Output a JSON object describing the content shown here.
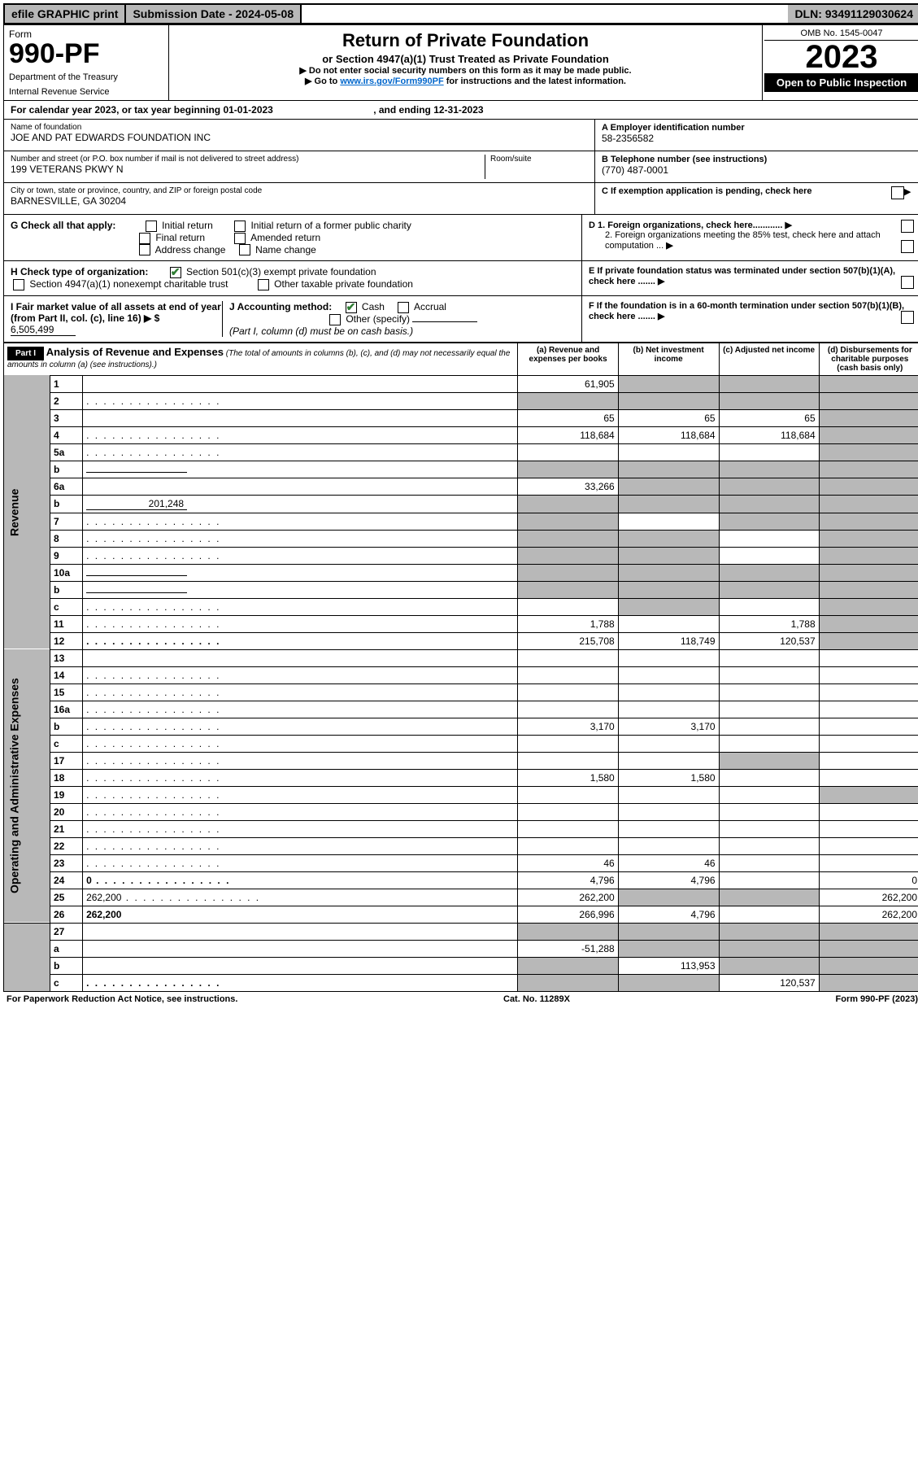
{
  "top": {
    "efile": "efile GRAPHIC print",
    "subdate_label": "Submission Date - ",
    "subdate": "2024-05-08",
    "dln_label": "DLN: ",
    "dln": "93491129030624"
  },
  "header": {
    "form_label": "Form",
    "form_num": "990-PF",
    "dept1": "Department of the Treasury",
    "dept2": "Internal Revenue Service",
    "title": "Return of Private Foundation",
    "subtitle": "or Section 4947(a)(1) Trust Treated as Private Foundation",
    "instr1": "▶ Do not enter social security numbers on this form as it may be made public.",
    "instr2_pre": "▶ Go to ",
    "instr2_link": "www.irs.gov/Form990PF",
    "instr2_post": " for instructions and the latest information.",
    "omb": "OMB No. 1545-0047",
    "year": "2023",
    "open": "Open to Public Inspection"
  },
  "calyear": {
    "text_pre": "For calendar year 2023, or tax year beginning ",
    "begin": "01-01-2023",
    "text_mid": " , and ending ",
    "end": "12-31-2023"
  },
  "info": {
    "name_label": "Name of foundation",
    "name": "JOE AND PAT EDWARDS FOUNDATION INC",
    "addr_label": "Number and street (or P.O. box number if mail is not delivered to street address)",
    "addr": "199 VETERANS PKWY N",
    "room_label": "Room/suite",
    "city_label": "City or town, state or province, country, and ZIP or foreign postal code",
    "city": "BARNESVILLE, GA  30204",
    "a_label": "A Employer identification number",
    "a_val": "58-2356582",
    "b_label": "B Telephone number (see instructions)",
    "b_val": "(770) 487-0001",
    "c_label": "C If exemption application is pending, check here"
  },
  "checks": {
    "g_label": "G Check all that apply:",
    "g_opts": [
      "Initial return",
      "Initial return of a former public charity",
      "Final return",
      "Amended return",
      "Address change",
      "Name change"
    ],
    "h_label": "H Check type of organization:",
    "h_501c3": "Section 501(c)(3) exempt private foundation",
    "h_4947": "Section 4947(a)(1) nonexempt charitable trust",
    "h_other": "Other taxable private foundation",
    "i_label": "I Fair market value of all assets at end of year (from Part II, col. (c), line 16) ▶ $",
    "i_val": "6,505,499",
    "j_label": "J Accounting method:",
    "j_cash": "Cash",
    "j_accrual": "Accrual",
    "j_other": "Other (specify)",
    "j_note": "(Part I, column (d) must be on cash basis.)",
    "d1": "D 1. Foreign organizations, check here............",
    "d2": "2. Foreign organizations meeting the 85% test, check here and attach computation ...",
    "e": "E   If private foundation status was terminated under section 507(b)(1)(A), check here .......",
    "f": "F   If the foundation is in a 60-month termination under section 507(b)(1)(B), check here .......",
    "arrow": "▶"
  },
  "part1": {
    "label": "Part I",
    "title": "Analysis of Revenue and Expenses",
    "title_note": " (The total of amounts in columns (b), (c), and (d) may not necessarily equal the amounts in column (a) (see instructions).)",
    "col_a": "(a)   Revenue and expenses per books",
    "col_b": "(b)   Net investment income",
    "col_c": "(c)   Adjusted net income",
    "col_d": "(d)   Disbursements for charitable purposes (cash basis only)"
  },
  "side": {
    "revenue": "Revenue",
    "expenses": "Operating and Administrative Expenses"
  },
  "rows": [
    {
      "n": "1",
      "d": "",
      "a": "61,905",
      "b": "",
      "c": "",
      "shade_b": true,
      "shade_c": true,
      "shade_d": true
    },
    {
      "n": "2",
      "d": "",
      "a": "",
      "b": "",
      "c": "",
      "shade_a": true,
      "shade_b": true,
      "shade_c": true,
      "shade_d": true,
      "dots": true
    },
    {
      "n": "3",
      "d": "",
      "a": "65",
      "b": "65",
      "c": "65",
      "shade_d": true
    },
    {
      "n": "4",
      "d": "",
      "a": "118,684",
      "b": "118,684",
      "c": "118,684",
      "shade_d": true,
      "dots": true
    },
    {
      "n": "5a",
      "d": "",
      "a": "",
      "b": "",
      "c": "",
      "shade_d": true,
      "dots": true
    },
    {
      "n": "b",
      "d": "",
      "a": "",
      "b": "",
      "c": "",
      "shade_a": true,
      "shade_b": true,
      "shade_c": true,
      "shade_d": true,
      "inline": true
    },
    {
      "n": "6a",
      "d": "",
      "a": "33,266",
      "b": "",
      "c": "",
      "shade_b": true,
      "shade_c": true,
      "shade_d": true
    },
    {
      "n": "b",
      "d": "",
      "a": "",
      "b": "",
      "c": "",
      "shade_a": true,
      "shade_b": true,
      "shade_c": true,
      "shade_d": true,
      "inline": true,
      "inline_val": "201,248"
    },
    {
      "n": "7",
      "d": "",
      "a": "",
      "b": "",
      "c": "",
      "shade_a": true,
      "shade_c": true,
      "shade_d": true,
      "dots": true
    },
    {
      "n": "8",
      "d": "",
      "a": "",
      "b": "",
      "c": "",
      "shade_a": true,
      "shade_b": true,
      "shade_d": true,
      "dots": true
    },
    {
      "n": "9",
      "d": "",
      "a": "",
      "b": "",
      "c": "",
      "shade_a": true,
      "shade_b": true,
      "shade_d": true,
      "dots": true
    },
    {
      "n": "10a",
      "d": "",
      "a": "",
      "b": "",
      "c": "",
      "shade_a": true,
      "shade_b": true,
      "shade_c": true,
      "shade_d": true,
      "inline": true
    },
    {
      "n": "b",
      "d": "",
      "a": "",
      "b": "",
      "c": "",
      "shade_a": true,
      "shade_b": true,
      "shade_c": true,
      "shade_d": true,
      "inline": true,
      "dots": true
    },
    {
      "n": "c",
      "d": "",
      "a": "",
      "b": "",
      "c": "",
      "shade_b": true,
      "shade_d": true,
      "dots": true
    },
    {
      "n": "11",
      "d": "",
      "a": "1,788",
      "b": "",
      "c": "1,788",
      "shade_d": true,
      "dots": true
    },
    {
      "n": "12",
      "d": "",
      "a": "215,708",
      "b": "118,749",
      "c": "120,537",
      "shade_d": true,
      "bold": true,
      "dots": true
    }
  ],
  "rows2": [
    {
      "n": "13",
      "d": "",
      "a": "",
      "b": "",
      "c": ""
    },
    {
      "n": "14",
      "d": "",
      "a": "",
      "b": "",
      "c": "",
      "dots": true
    },
    {
      "n": "15",
      "d": "",
      "a": "",
      "b": "",
      "c": "",
      "dots": true
    },
    {
      "n": "16a",
      "d": "",
      "a": "",
      "b": "",
      "c": "",
      "dots": true
    },
    {
      "n": "b",
      "d": "",
      "a": "3,170",
      "b": "3,170",
      "c": "",
      "dots": true
    },
    {
      "n": "c",
      "d": "",
      "a": "",
      "b": "",
      "c": "",
      "dots": true
    },
    {
      "n": "17",
      "d": "",
      "a": "",
      "b": "",
      "c": "",
      "shade_c": true,
      "dots": true
    },
    {
      "n": "18",
      "d": "",
      "a": "1,580",
      "b": "1,580",
      "c": "",
      "dots": true
    },
    {
      "n": "19",
      "d": "",
      "a": "",
      "b": "",
      "c": "",
      "shade_d": true,
      "dots": true
    },
    {
      "n": "20",
      "d": "",
      "a": "",
      "b": "",
      "c": "",
      "dots": true
    },
    {
      "n": "21",
      "d": "",
      "a": "",
      "b": "",
      "c": "",
      "dots": true
    },
    {
      "n": "22",
      "d": "",
      "a": "",
      "b": "",
      "c": "",
      "dots": true
    },
    {
      "n": "23",
      "d": "",
      "a": "46",
      "b": "46",
      "c": "",
      "dots": true
    },
    {
      "n": "24",
      "d": "0",
      "a": "4,796",
      "b": "4,796",
      "c": "",
      "bold": true,
      "dots": true
    },
    {
      "n": "25",
      "d": "262,200",
      "a": "262,200",
      "b": "",
      "c": "",
      "shade_b": true,
      "shade_c": true,
      "dots": true
    },
    {
      "n": "26",
      "d": "262,200",
      "a": "266,996",
      "b": "4,796",
      "c": "",
      "bold": true
    }
  ],
  "rows3": [
    {
      "n": "27",
      "d": "",
      "a": "",
      "b": "",
      "c": "",
      "shade_a": true,
      "shade_b": true,
      "shade_c": true,
      "shade_d": true
    },
    {
      "n": "a",
      "d": "",
      "a": "-51,288",
      "b": "",
      "c": "",
      "shade_b": true,
      "shade_c": true,
      "shade_d": true,
      "bold": true
    },
    {
      "n": "b",
      "d": "",
      "a": "",
      "b": "113,953",
      "c": "",
      "shade_a": true,
      "shade_c": true,
      "shade_d": true,
      "bold": true
    },
    {
      "n": "c",
      "d": "",
      "a": "",
      "b": "",
      "c": "120,537",
      "shade_a": true,
      "shade_b": true,
      "shade_d": true,
      "bold": true,
      "dots": true
    }
  ],
  "footer": {
    "left": "For Paperwork Reduction Act Notice, see instructions.",
    "mid": "Cat. No. 11289X",
    "right": "Form 990-PF (2023)"
  }
}
